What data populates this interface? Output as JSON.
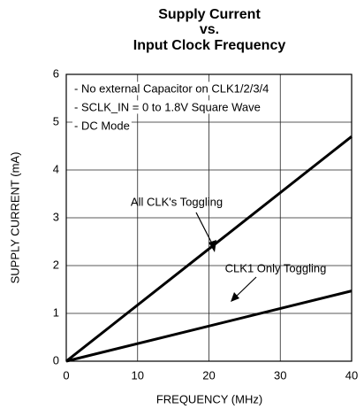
{
  "chart_data": {
    "type": "line",
    "title": [
      "Supply Current",
      "vs.",
      "Input Clock Frequency"
    ],
    "notes": [
      "- No external Capacitor on CLK1/2/3/4",
      "- SCLK_IN = 0 to 1.8V Square Wave",
      "- DC Mode"
    ],
    "x_label": "FREQUENCY (MHz)",
    "y_label": "SUPPLY CURRENT (mA)",
    "x": [
      0,
      40
    ],
    "series": [
      {
        "name": "All CLK's Toggling",
        "color": "#000000",
        "values": [
          0,
          4.7
        ]
      },
      {
        "name": "CLK1 Only Toggling",
        "color": "#000000",
        "values": [
          0,
          1.47
        ]
      }
    ],
    "xlim": [
      0,
      40
    ],
    "xticks": [
      0,
      10,
      20,
      30,
      40
    ],
    "ylim": [
      0,
      6
    ],
    "yticks": [
      0,
      1,
      2,
      3,
      4,
      5,
      6
    ],
    "grid": true
  }
}
